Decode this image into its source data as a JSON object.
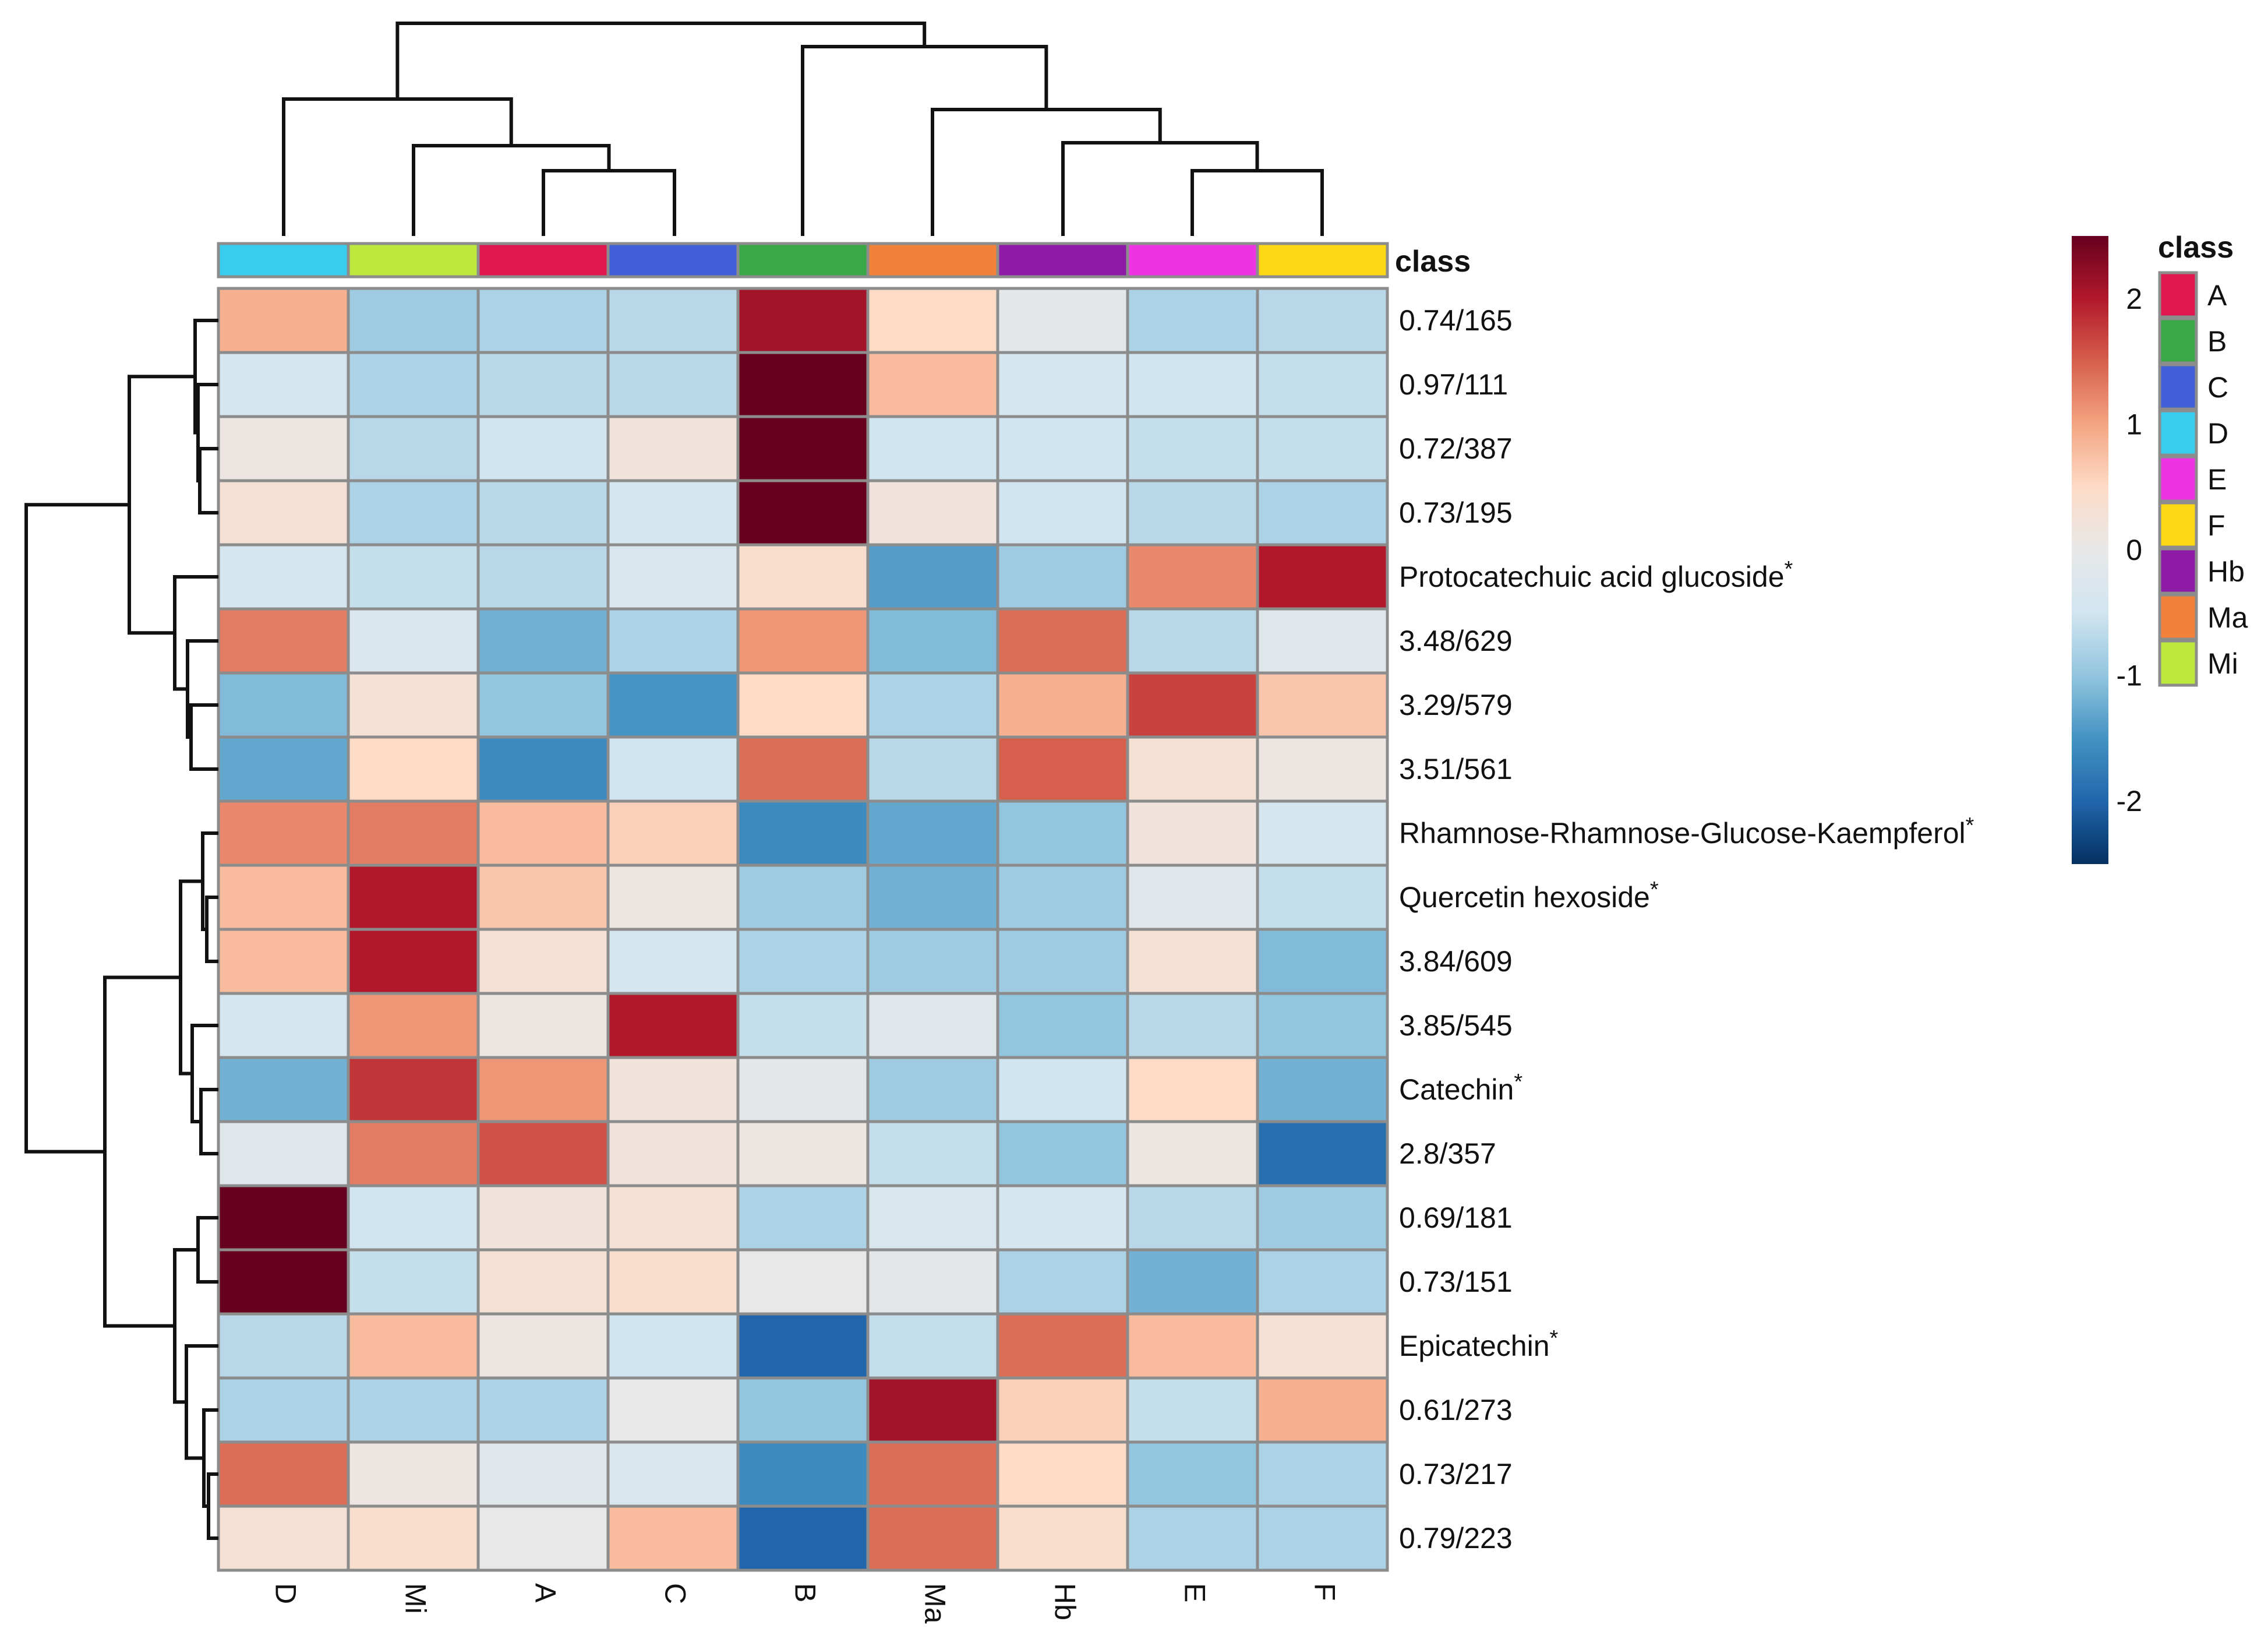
{
  "chart_data": {
    "type": "heatmap",
    "title": "",
    "columns": [
      "D",
      "Mi",
      "A",
      "C",
      "B",
      "Ma",
      "Hb",
      "E",
      "F"
    ],
    "rows": [
      {
        "label": "0.74/165",
        "star": false
      },
      {
        "label": "0.97/111",
        "star": false
      },
      {
        "label": "0.72/387",
        "star": false
      },
      {
        "label": "0.73/195",
        "star": false
      },
      {
        "label": "Protocatechuic acid glucoside",
        "star": true
      },
      {
        "label": "3.48/629",
        "star": false
      },
      {
        "label": "3.29/579",
        "star": false
      },
      {
        "label": "3.51/561",
        "star": false
      },
      {
        "label": "Rhamnose-Rhamnose-Glucose-Kaempferol",
        "star": true
      },
      {
        "label": "Quercetin hexoside",
        "star": true
      },
      {
        "label": "3.84/609",
        "star": false
      },
      {
        "label": "3.85/545",
        "star": false
      },
      {
        "label": "Catechin",
        "star": true
      },
      {
        "label": "2.8/357",
        "star": false
      },
      {
        "label": "0.69/181",
        "star": false
      },
      {
        "label": "0.73/151",
        "star": false
      },
      {
        "label": "Epicatechin",
        "star": true
      },
      {
        "label": "0.61/273",
        "star": false
      },
      {
        "label": "0.73/217",
        "star": false
      },
      {
        "label": "0.79/223",
        "star": false
      }
    ],
    "values": [
      [
        0.9,
        -0.9,
        -0.8,
        -0.7,
        2.1,
        0.5,
        -0.1,
        -0.8,
        -0.7
      ],
      [
        -0.4,
        -0.8,
        -0.7,
        -0.7,
        2.5,
        0.8,
        -0.4,
        -0.5,
        -0.6
      ],
      [
        0.1,
        -0.7,
        -0.5,
        0.2,
        2.5,
        -0.5,
        -0.5,
        -0.6,
        -0.6
      ],
      [
        0.3,
        -0.8,
        -0.7,
        -0.4,
        2.5,
        0.2,
        -0.5,
        -0.7,
        -0.8
      ],
      [
        -0.4,
        -0.6,
        -0.7,
        -0.3,
        0.4,
        -1.4,
        -0.9,
        1.2,
        2.0
      ],
      [
        1.3,
        -0.3,
        -1.2,
        -0.8,
        1.1,
        -1.1,
        1.4,
        -0.7,
        -0.2
      ],
      [
        -1.1,
        0.3,
        -1.0,
        -1.5,
        0.5,
        -0.8,
        0.9,
        1.7,
        0.7
      ],
      [
        -1.3,
        0.5,
        -1.6,
        -0.5,
        1.4,
        -0.7,
        1.5,
        0.3,
        0.1
      ],
      [
        1.2,
        1.3,
        0.8,
        0.6,
        -1.6,
        -1.3,
        -1.0,
        0.2,
        -0.4
      ],
      [
        0.8,
        2.0,
        0.7,
        0.1,
        -0.9,
        -1.2,
        -0.9,
        -0.2,
        -0.6
      ],
      [
        0.8,
        2.0,
        0.3,
        -0.4,
        -0.8,
        -0.9,
        -0.9,
        0.3,
        -1.1
      ],
      [
        -0.4,
        1.1,
        0.1,
        2.0,
        -0.6,
        -0.2,
        -1.0,
        -0.7,
        -1.0
      ],
      [
        -1.2,
        1.8,
        1.1,
        0.2,
        -0.1,
        -0.9,
        -0.5,
        0.5,
        -1.2
      ],
      [
        -0.2,
        1.3,
        1.6,
        0.2,
        0.1,
        -0.6,
        -1.0,
        0.1,
        -1.9
      ],
      [
        2.5,
        -0.5,
        0.2,
        0.3,
        -0.8,
        -0.3,
        -0.4,
        -0.7,
        -0.9
      ],
      [
        2.5,
        -0.6,
        0.3,
        0.4,
        0.0,
        -0.1,
        -0.8,
        -1.2,
        -0.8
      ],
      [
        -0.7,
        0.8,
        0.1,
        -0.5,
        -2.0,
        -0.6,
        1.4,
        0.8,
        0.3
      ],
      [
        -0.8,
        -0.8,
        -0.8,
        0.0,
        -1.0,
        2.1,
        0.6,
        -0.6,
        0.9
      ],
      [
        1.4,
        0.1,
        -0.2,
        -0.3,
        -1.6,
        1.4,
        0.5,
        -1.0,
        -0.8
      ],
      [
        0.3,
        0.4,
        0.0,
        0.8,
        -2.0,
        1.4,
        0.4,
        -0.8,
        -0.8
      ]
    ],
    "annotation_title": "class",
    "column_classes": [
      "D",
      "Mi",
      "A",
      "C",
      "B",
      "Ma",
      "Hb",
      "E",
      "F"
    ],
    "class_colors": {
      "A": "#e0174f",
      "B": "#3aa847",
      "C": "#4160d8",
      "D": "#38cdee",
      "E": "#ee33e3",
      "F": "#fcd914",
      "Hb": "#8e1ba6",
      "Ma": "#f2813a",
      "Mi": "#bde93e"
    },
    "class_legend": [
      "A",
      "B",
      "C",
      "D",
      "E",
      "F",
      "Hb",
      "Ma",
      "Mi"
    ],
    "colorbar": {
      "range": [
        -2.5,
        2.5
      ],
      "ticks": [
        "2",
        "1",
        "0",
        "-1",
        "-2"
      ],
      "tick_values": [
        2,
        1,
        0,
        -1,
        -2
      ],
      "colors_low_to_high": [
        "#053061",
        "#2166ac",
        "#4393c3",
        "#92c5de",
        "#d1e5f0",
        "#e8e8e8",
        "#fddbc7",
        "#f4a582",
        "#d6604d",
        "#b2182b",
        "#67001f"
      ]
    },
    "star_symbol": "*"
  }
}
